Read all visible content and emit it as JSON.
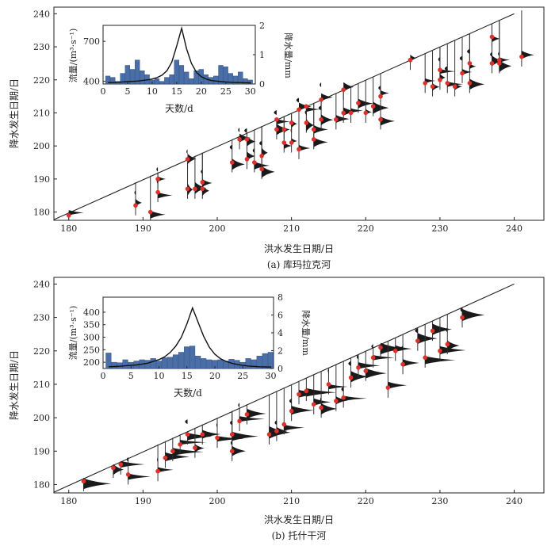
{
  "chart_data": [
    {
      "type": "scatter",
      "caption": "(a) 库玛拉克河",
      "xlabel": "洪水发生日期/日",
      "ylabel": "降水发生日期/日",
      "xlim": [
        178,
        244
      ],
      "ylim": [
        177.5,
        242
      ],
      "xticks": [
        180,
        190,
        200,
        210,
        220,
        230,
        240
      ],
      "yticks": [
        180,
        190,
        200,
        210,
        220,
        230,
        240
      ],
      "envelope": [
        [
          178,
          177.7
        ],
        [
          240,
          240
        ]
      ],
      "points": [
        [
          180,
          179
        ],
        [
          189,
          182
        ],
        [
          191,
          180
        ],
        [
          192,
          190
        ],
        [
          192,
          186
        ],
        [
          196,
          196
        ],
        [
          196,
          187
        ],
        [
          197,
          187
        ],
        [
          198,
          189
        ],
        [
          198,
          187
        ],
        [
          202,
          195
        ],
        [
          203,
          202
        ],
        [
          204,
          202
        ],
        [
          204,
          196
        ],
        [
          205,
          195
        ],
        [
          206,
          193
        ],
        [
          206,
          197
        ],
        [
          208,
          208
        ],
        [
          208,
          205
        ],
        [
          209,
          205
        ],
        [
          209,
          201
        ],
        [
          210,
          201
        ],
        [
          210,
          207
        ],
        [
          211,
          211
        ],
        [
          211,
          199
        ],
        [
          212,
          212
        ],
        [
          212,
          207
        ],
        [
          213,
          205
        ],
        [
          213,
          202
        ],
        [
          214,
          214
        ],
        [
          214,
          208
        ],
        [
          216,
          208
        ],
        [
          217,
          217
        ],
        [
          217,
          210
        ],
        [
          218,
          210
        ],
        [
          219,
          213
        ],
        [
          220,
          210
        ],
        [
          221,
          212
        ],
        [
          222,
          215
        ],
        [
          222,
          208
        ],
        [
          226,
          226
        ],
        [
          228,
          219
        ],
        [
          229,
          218
        ],
        [
          230,
          223
        ],
        [
          230,
          220
        ],
        [
          231,
          219
        ],
        [
          232,
          218
        ],
        [
          233,
          222
        ],
        [
          234,
          219
        ],
        [
          234,
          225
        ],
        [
          237,
          233
        ],
        [
          237,
          225
        ],
        [
          238,
          225
        ],
        [
          238,
          226
        ],
        [
          241,
          227
        ]
      ],
      "inset": {
        "xlabel": "天数/d",
        "ylabel_left": "流量/(m³·s⁻¹)",
        "ylabel_right": "降水量/mm",
        "xlim": [
          0,
          31
        ],
        "xticks": [
          0,
          5,
          10,
          15,
          20,
          25,
          30
        ],
        "ylim_left": [
          380,
          820
        ],
        "yticks_left": [
          400,
          700
        ],
        "ylim_right": [
          0,
          2
        ],
        "yticks_right": [
          0,
          1,
          2
        ],
        "discharge": [
          440,
          430,
          400,
          460,
          520,
          490,
          560,
          480,
          450,
          410,
          420,
          400,
          430,
          450,
          560,
          520,
          470,
          420,
          480,
          490,
          450,
          430,
          440,
          520,
          510,
          460,
          440,
          470,
          420,
          410
        ],
        "precip_days": [
          1,
          2,
          3,
          4,
          5,
          6,
          7,
          8,
          9,
          10,
          11,
          12,
          13,
          14,
          15,
          16,
          17,
          18,
          19,
          20,
          21,
          22,
          23,
          24,
          25,
          26,
          27,
          28,
          29,
          30
        ],
        "precip": [
          0.05,
          0.05,
          0.06,
          0.07,
          0.08,
          0.09,
          0.1,
          0.12,
          0.14,
          0.17,
          0.22,
          0.3,
          0.45,
          0.75,
          1.3,
          1.9,
          1.2,
          0.7,
          0.4,
          0.25,
          0.17,
          0.12,
          0.1,
          0.08,
          0.07,
          0.06,
          0.05,
          0.05,
          0.04,
          0.04
        ]
      }
    },
    {
      "type": "scatter",
      "caption": "(b) 托什干河",
      "xlabel": "洪水发生日期/日",
      "ylabel": "降水发生日期/日",
      "xlim": [
        178,
        244
      ],
      "ylim": [
        177.5,
        242
      ],
      "xticks": [
        180,
        190,
        200,
        210,
        220,
        230,
        240
      ],
      "yticks": [
        180,
        190,
        200,
        210,
        220,
        230,
        240
      ],
      "envelope": [
        [
          178,
          177.7
        ],
        [
          240,
          240
        ]
      ],
      "points": [
        [
          182,
          181
        ],
        [
          186,
          185
        ],
        [
          187,
          186
        ],
        [
          188,
          183
        ],
        [
          192,
          184
        ],
        [
          193,
          188
        ],
        [
          194,
          190
        ],
        [
          195,
          192
        ],
        [
          196,
          195
        ],
        [
          197,
          191
        ],
        [
          198,
          195
        ],
        [
          200,
          194
        ],
        [
          202,
          190
        ],
        [
          202,
          195
        ],
        [
          203,
          199
        ],
        [
          204,
          201
        ],
        [
          207,
          195
        ],
        [
          208,
          196
        ],
        [
          209,
          198
        ],
        [
          210,
          202
        ],
        [
          211,
          207
        ],
        [
          212,
          208
        ],
        [
          213,
          204
        ],
        [
          214,
          203
        ],
        [
          215,
          210
        ],
        [
          216,
          205
        ],
        [
          217,
          206
        ],
        [
          218,
          212
        ],
        [
          219,
          215
        ],
        [
          220,
          214
        ],
        [
          221,
          218
        ],
        [
          222,
          221
        ],
        [
          223,
          209
        ],
        [
          224,
          220
        ],
        [
          225,
          216
        ],
        [
          227,
          223
        ],
        [
          228,
          218
        ],
        [
          229,
          226
        ],
        [
          230,
          220
        ],
        [
          231,
          222
        ],
        [
          233,
          230
        ]
      ],
      "inset": {
        "xlabel": "天数/d",
        "ylabel_left": "流量/(m³·s⁻¹)",
        "ylabel_right": "降水量/mm",
        "xlim": [
          0,
          30.5
        ],
        "xticks": [
          0,
          5,
          10,
          15,
          20,
          25,
          30
        ],
        "ylim_left": [
          175,
          460
        ],
        "yticks_left": [
          200,
          250,
          300,
          350,
          400
        ],
        "ylim_right": [
          0,
          8
        ],
        "yticks_right": [
          0,
          2,
          4,
          6,
          8
        ],
        "discharge": [
          237,
          200,
          198,
          210,
          200,
          205,
          210,
          208,
          215,
          205,
          218,
          220,
          230,
          240,
          262,
          265,
          225,
          215,
          210,
          208,
          210,
          205,
          212,
          208,
          200,
          215,
          210,
          225,
          235,
          240
        ],
        "precip_days": [
          1,
          2,
          3,
          4,
          5,
          6,
          7,
          8,
          9,
          10,
          11,
          12,
          13,
          14,
          15,
          16,
          17,
          18,
          19,
          20,
          21,
          22,
          23,
          24,
          25,
          26,
          27,
          28,
          29,
          30
        ],
        "precip": [
          0.2,
          0.22,
          0.25,
          0.3,
          0.35,
          0.4,
          0.5,
          0.6,
          0.8,
          1.0,
          1.3,
          1.8,
          2.5,
          3.5,
          5.0,
          6.8,
          5.2,
          3.6,
          2.4,
          1.6,
          1.1,
          0.8,
          0.6,
          0.45,
          0.35,
          0.28,
          0.24,
          0.2,
          0.18,
          0.16
        ]
      }
    }
  ]
}
